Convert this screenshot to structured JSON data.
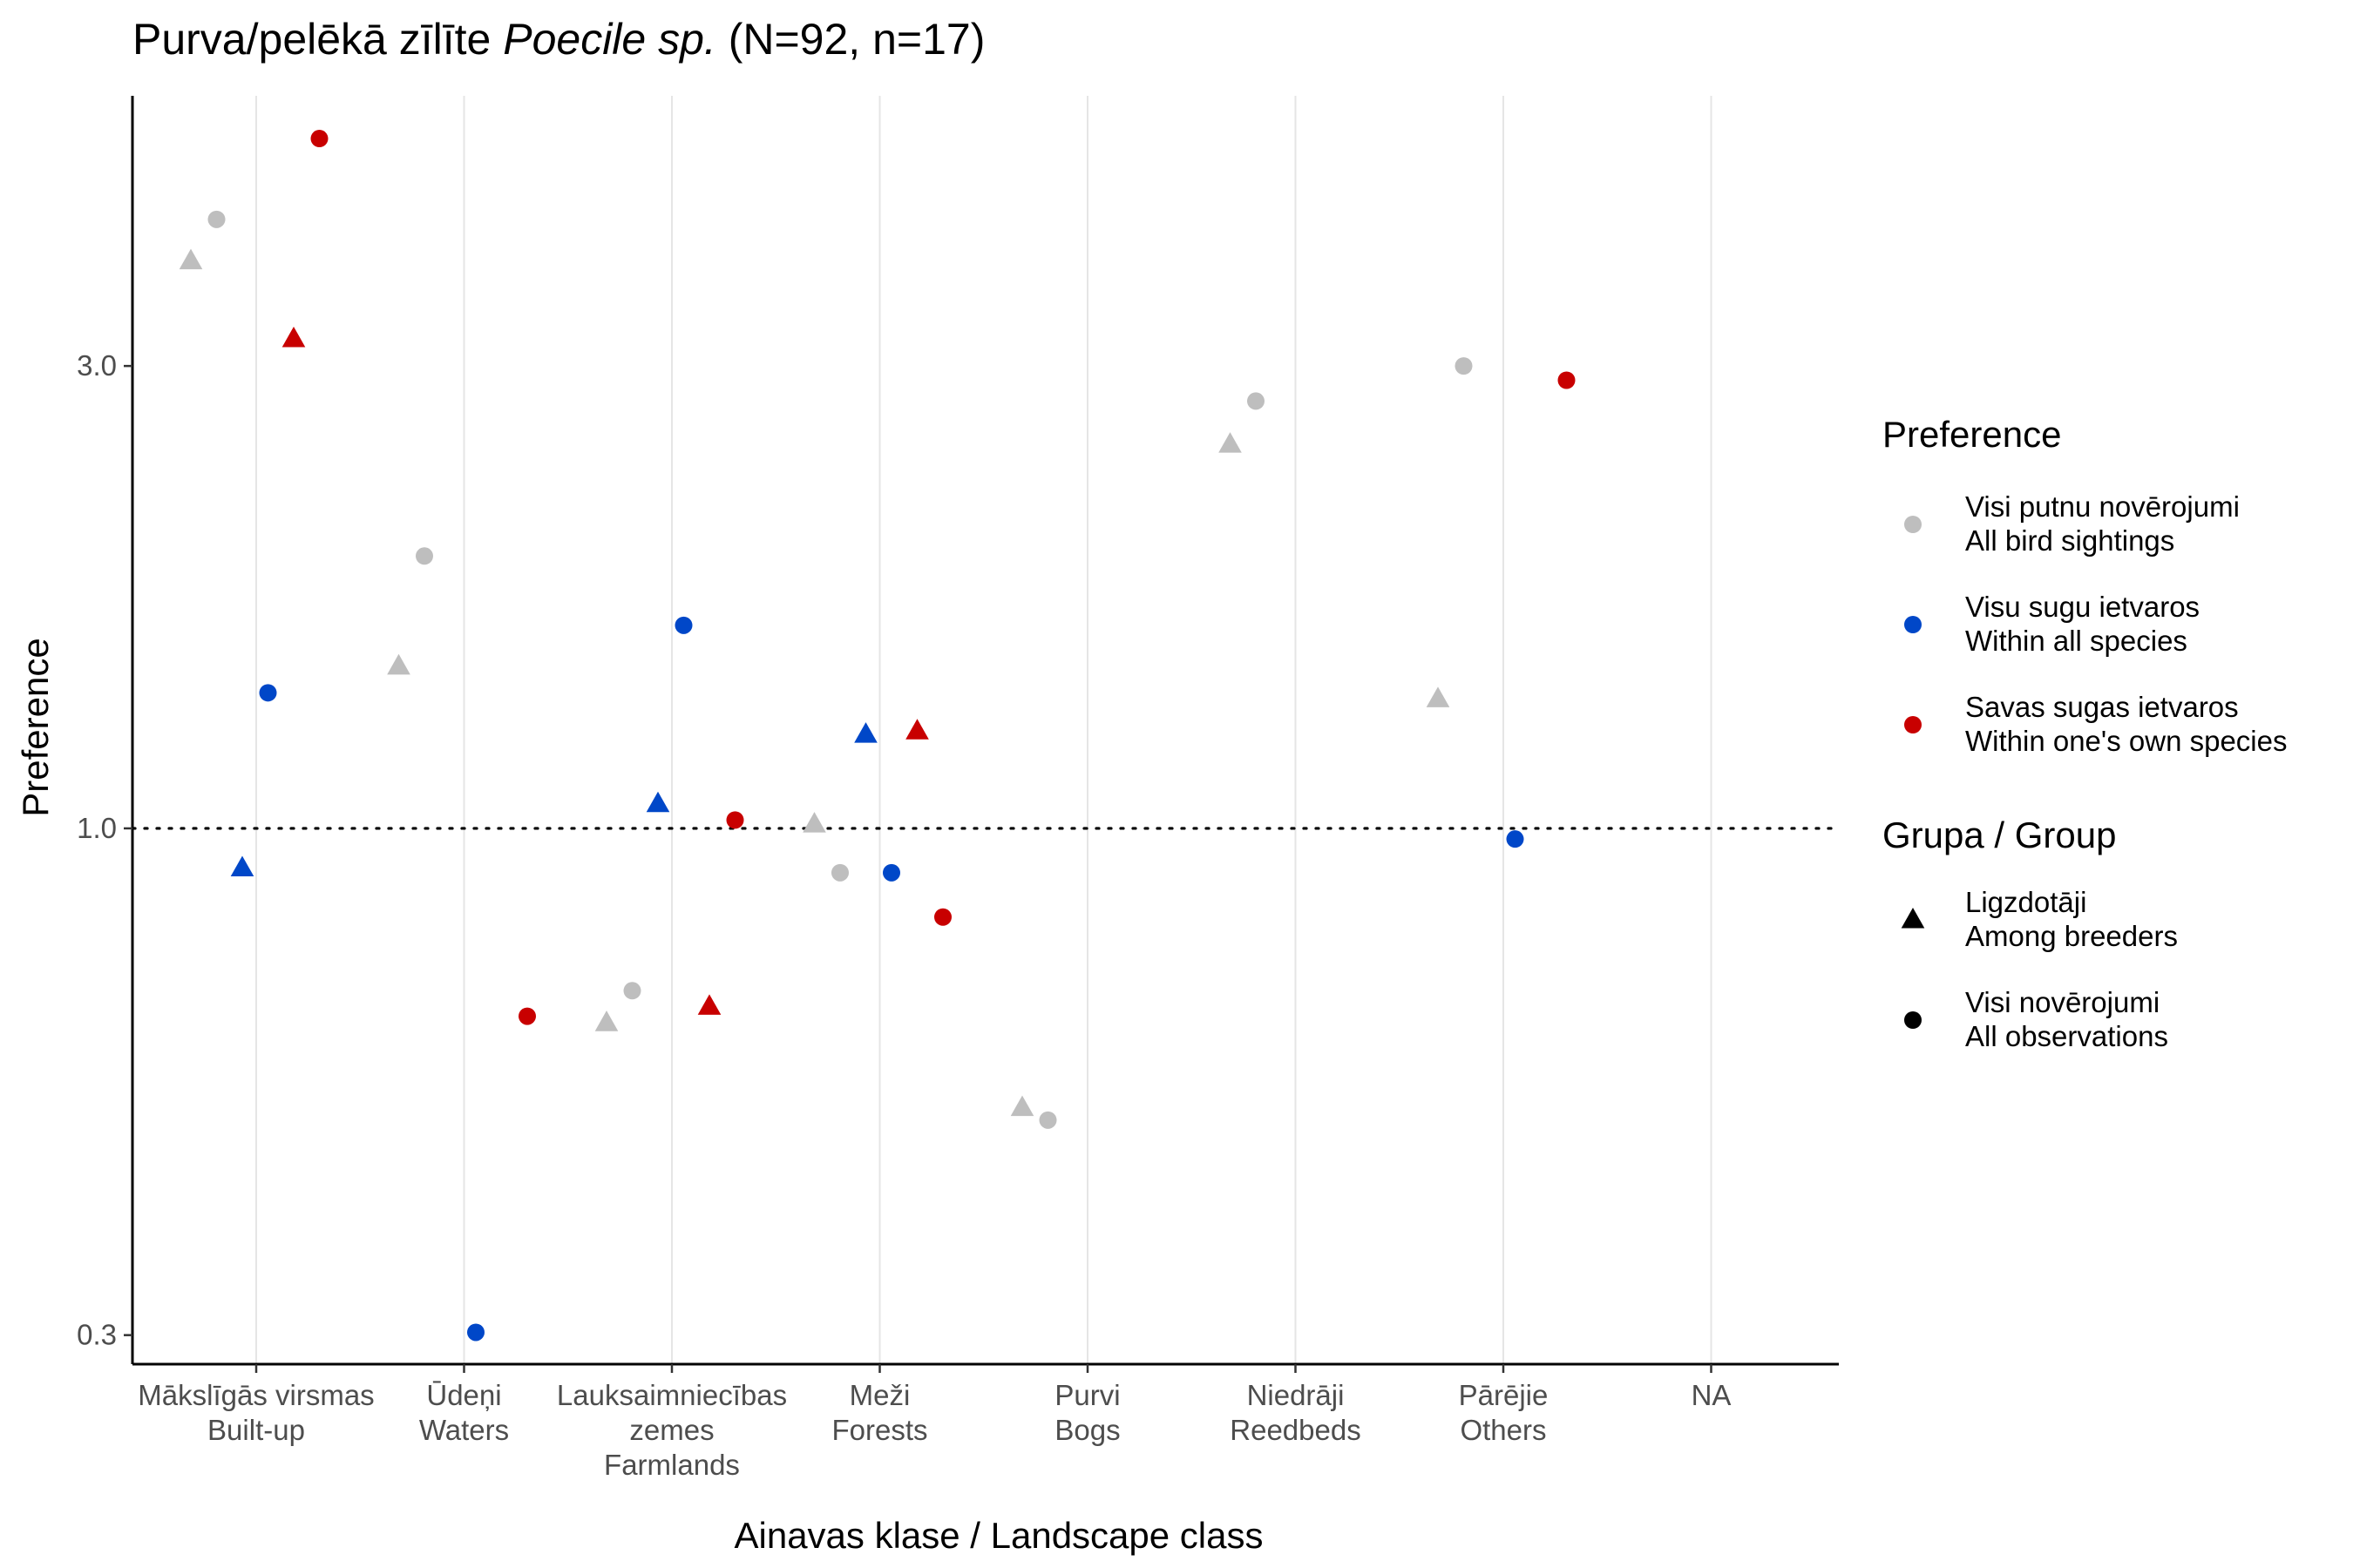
{
  "chart_data": {
    "type": "scatter",
    "title_main": "Purva/pelēkā zīlīte ",
    "title_italic": "Poecile sp.",
    "title_tail": " (N=92, n=17)",
    "xlabel": "Ainavas klase / Landscape class",
    "ylabel": "Preference",
    "y_scale": "log",
    "ylim": [
      0.28,
      5.7
    ],
    "yticks": [
      {
        "value": 0.3,
        "label": "0.3"
      },
      {
        "value": 1.0,
        "label": "1.0"
      },
      {
        "value": 3.0,
        "label": "3.0"
      }
    ],
    "reference_line": {
      "value": 1.0,
      "style": "dotted"
    },
    "categories": [
      {
        "key": "builtup",
        "lines": [
          "Mākslīgās virsmas",
          "Built-up"
        ]
      },
      {
        "key": "waters",
        "lines": [
          "Ūdeņi",
          "Waters"
        ]
      },
      {
        "key": "farmlands",
        "lines": [
          "Lauksaimniecības",
          "zemes",
          "Farmlands"
        ]
      },
      {
        "key": "forests",
        "lines": [
          "Meži",
          "Forests"
        ]
      },
      {
        "key": "bogs",
        "lines": [
          "Purvi",
          "Bogs"
        ]
      },
      {
        "key": "reedbeds",
        "lines": [
          "Niedrāji",
          "Reedbeds"
        ]
      },
      {
        "key": "others",
        "lines": [
          "Pārējie",
          "Others"
        ]
      },
      {
        "key": "na",
        "lines": [
          "NA"
        ]
      }
    ],
    "grid": {
      "vertical": true,
      "horizontal": false
    },
    "legend_position": "right",
    "preference_legend": {
      "title": "Preference",
      "entries": [
        {
          "key": "all_sightings",
          "line1": "Visi putnu novērojumi",
          "line2": "All bird sightings",
          "color": "#bebebe"
        },
        {
          "key": "all_species",
          "line1": "Visu sugu ietvaros",
          "line2": "Within all species",
          "color": "#0047c8"
        },
        {
          "key": "own_species",
          "line1": "Savas sugas ietvaros",
          "line2": "Within one's own species",
          "color": "#c80000"
        }
      ]
    },
    "group_legend": {
      "title": "Grupa / Group",
      "entries": [
        {
          "key": "breeders",
          "line1": "Ligzdotāji",
          "line2": "Among breeders",
          "shape": "triangle"
        },
        {
          "key": "observations",
          "line1": "Visi novērojumi",
          "line2": "All observations",
          "shape": "circle"
        }
      ]
    },
    "points": [
      {
        "category": "builtup",
        "preference": "all_sightings",
        "group": "breeders",
        "value": 3.85
      },
      {
        "category": "builtup",
        "preference": "all_sightings",
        "group": "observations",
        "value": 4.25
      },
      {
        "category": "builtup",
        "preference": "all_species",
        "group": "breeders",
        "value": 0.91
      },
      {
        "category": "builtup",
        "preference": "all_species",
        "group": "observations",
        "value": 1.38
      },
      {
        "category": "builtup",
        "preference": "own_species",
        "group": "breeders",
        "value": 3.2
      },
      {
        "category": "builtup",
        "preference": "own_species",
        "group": "observations",
        "value": 5.15
      },
      {
        "category": "waters",
        "preference": "all_sightings",
        "group": "breeders",
        "value": 1.47
      },
      {
        "category": "waters",
        "preference": "all_sightings",
        "group": "observations",
        "value": 1.91
      },
      {
        "category": "waters",
        "preference": "all_species",
        "group": "observations",
        "value": 0.302
      },
      {
        "category": "waters",
        "preference": "own_species",
        "group": "observations",
        "value": 0.64
      },
      {
        "category": "farmlands",
        "preference": "all_sightings",
        "group": "breeders",
        "value": 0.63
      },
      {
        "category": "farmlands",
        "preference": "all_sightings",
        "group": "observations",
        "value": 0.68
      },
      {
        "category": "farmlands",
        "preference": "all_species",
        "group": "breeders",
        "value": 1.06
      },
      {
        "category": "farmlands",
        "preference": "all_species",
        "group": "observations",
        "value": 1.62
      },
      {
        "category": "farmlands",
        "preference": "own_species",
        "group": "breeders",
        "value": 0.655
      },
      {
        "category": "farmlands",
        "preference": "own_species",
        "group": "observations",
        "value": 1.02
      },
      {
        "category": "forests",
        "preference": "all_sightings",
        "group": "breeders",
        "value": 1.01
      },
      {
        "category": "forests",
        "preference": "all_sightings",
        "group": "observations",
        "value": 0.9
      },
      {
        "category": "forests",
        "preference": "all_species",
        "group": "breeders",
        "value": 1.25
      },
      {
        "category": "forests",
        "preference": "all_species",
        "group": "observations",
        "value": 0.9
      },
      {
        "category": "forests",
        "preference": "own_species",
        "group": "breeders",
        "value": 1.26
      },
      {
        "category": "forests",
        "preference": "own_species",
        "group": "observations",
        "value": 0.81
      },
      {
        "category": "bogs",
        "preference": "all_sightings",
        "group": "breeders",
        "value": 0.515
      },
      {
        "category": "bogs",
        "preference": "all_sightings",
        "group": "observations",
        "value": 0.5
      },
      {
        "category": "reedbeds",
        "preference": "all_sightings",
        "group": "breeders",
        "value": 2.49
      },
      {
        "category": "reedbeds",
        "preference": "all_sightings",
        "group": "observations",
        "value": 2.76
      },
      {
        "category": "others",
        "preference": "all_sightings",
        "group": "breeders",
        "value": 1.36
      },
      {
        "category": "others",
        "preference": "all_sightings",
        "group": "observations",
        "value": 3.0
      },
      {
        "category": "others",
        "preference": "all_species",
        "group": "observations",
        "value": 0.975
      },
      {
        "category": "others",
        "preference": "own_species",
        "group": "observations",
        "value": 2.9
      }
    ]
  }
}
